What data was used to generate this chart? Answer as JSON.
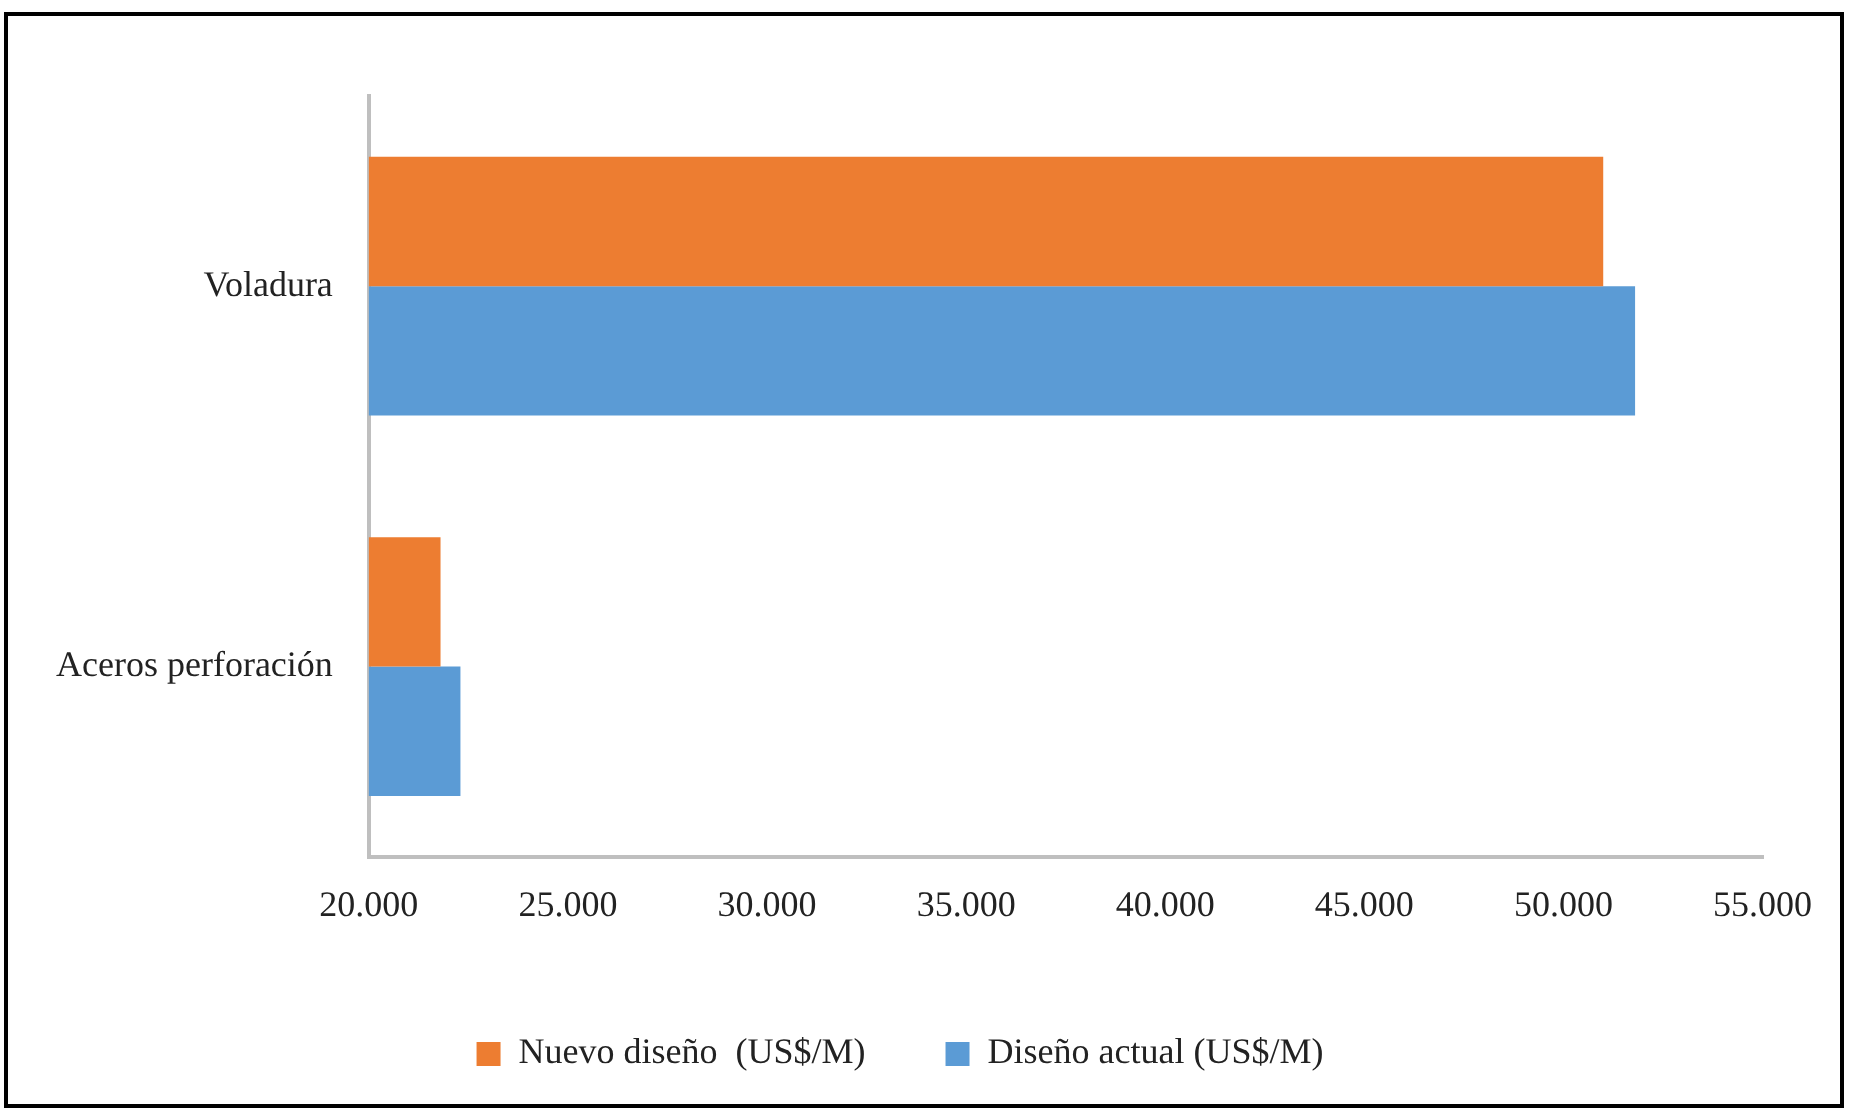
{
  "chart_data": {
    "type": "bar",
    "orientation": "horizontal",
    "categories": [
      "Voladura",
      "Aceros perforación"
    ],
    "series": [
      {
        "name": "Nuevo diseño  (US$/M)",
        "color": "#ed7d31",
        "values": [
          51000,
          21800
        ]
      },
      {
        "name": "Diseño actual (US$/M)",
        "color": "#5b9bd5",
        "values": [
          51800,
          22300
        ]
      }
    ],
    "xlim": [
      20000,
      55000
    ],
    "xticks": [
      {
        "value": 20000,
        "label": "20.000"
      },
      {
        "value": 25000,
        "label": "25.000"
      },
      {
        "value": 30000,
        "label": "30.000"
      },
      {
        "value": 35000,
        "label": "35.000"
      },
      {
        "value": 40000,
        "label": "40.000"
      },
      {
        "value": 45000,
        "label": "45.000"
      },
      {
        "value": 50000,
        "label": "50.000"
      },
      {
        "value": 55000,
        "label": "55.000"
      }
    ],
    "grid": false,
    "legend": "bottom"
  }
}
